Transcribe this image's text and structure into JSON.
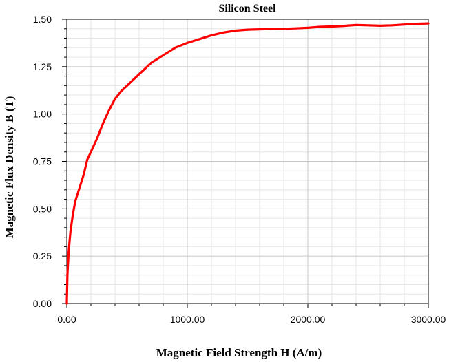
{
  "chart_data": {
    "type": "line",
    "title": "Silicon Steel",
    "xlabel": "Magnetic Field Strength H (A/m)",
    "ylabel": "Magnetic Flux Density B (T)",
    "xlim": [
      0,
      3000
    ],
    "ylim": [
      0,
      1.5
    ],
    "grid": true,
    "legend": "none",
    "x_ticks": [
      "0.00",
      "1000.00",
      "2000.00",
      "3000.00"
    ],
    "y_ticks": [
      "0.00",
      "0.25",
      "0.50",
      "0.75",
      "1.00",
      "1.25",
      "1.50"
    ],
    "series": [
      {
        "color": "#ff0000",
        "x": [
          0,
          5,
          15,
          30,
          50,
          70,
          90,
          110,
          140,
          170,
          200,
          250,
          300,
          350,
          400,
          450,
          500,
          600,
          700,
          800,
          900,
          1000,
          1100,
          1200,
          1300,
          1400,
          1500,
          1600,
          1700,
          1800,
          1900,
          2000,
          2100,
          2200,
          2300,
          2400,
          2500,
          2600,
          2700,
          2800,
          2900,
          3000
        ],
        "y": [
          0.0,
          0.15,
          0.27,
          0.38,
          0.47,
          0.54,
          0.58,
          0.62,
          0.68,
          0.76,
          0.8,
          0.87,
          0.95,
          1.02,
          1.08,
          1.12,
          1.15,
          1.21,
          1.27,
          1.31,
          1.35,
          1.375,
          1.395,
          1.415,
          1.43,
          1.44,
          1.445,
          1.447,
          1.449,
          1.45,
          1.452,
          1.455,
          1.46,
          1.462,
          1.465,
          1.47,
          1.468,
          1.466,
          1.468,
          1.472,
          1.476,
          1.478
        ]
      }
    ]
  }
}
